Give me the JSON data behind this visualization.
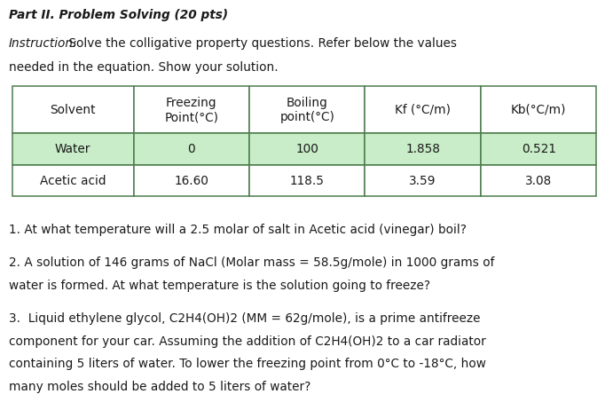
{
  "title": "Part II. Problem Solving (20 pts)",
  "instruction_label": "Instruction:",
  "instruction_line1": " Solve the colligative property questions. Refer below the values",
  "instruction_line2": "needed in the equation. Show your solution.",
  "table_headers": [
    "Solvent",
    "Freezing\nPoint(°C)",
    "Boiling\npoint(°C)",
    "Kf (°C/m)",
    "Kb(°C/m)"
  ],
  "table_rows": [
    [
      "Water",
      "0",
      "100",
      "1.858",
      "0.521"
    ],
    [
      "Acetic acid",
      "16.60",
      "118.5",
      "3.59",
      "3.08"
    ]
  ],
  "row_colors": [
    "#c8edc8",
    "#ffffff"
  ],
  "header_bg": "#ffffff",
  "table_border_color": "#4d7c4d",
  "q1": "1. At what temperature will a 2.5 molar of salt in Acetic acid (vinegar) boil?",
  "q2_line1": "2. A solution of 146 grams of NaCl (Molar mass = 58.5g/mole) in 1000 grams of",
  "q2_line2": "water is formed. At what temperature is the solution going to freeze?",
  "q3_line1": "3.  Liquid ethylene glycol, C2H4(OH)2 (MM = 62g/mole), is a prime antifreeze",
  "q3_line2": "component for your car. Assuming the addition of C2H4(OH)2 to a car radiator",
  "q3_line3": "containing 5 liters of water. To lower the freezing point from 0°C to -18°C, how",
  "q3_line4": "many moles should be added to 5 liters of water?",
  "bg_color": "#ffffff",
  "text_color": "#1a1a1a",
  "font_size": 9.8,
  "table_font_size": 9.8
}
